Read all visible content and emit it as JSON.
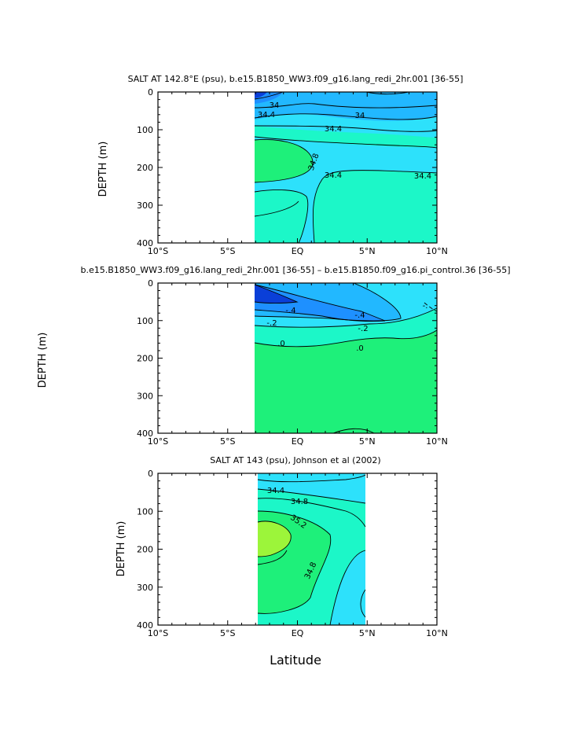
{
  "chart_data": [
    {
      "type": "contour",
      "title": "SALT AT 142.8°E (psu), b.e15.B1850_WW3.f09_g16.lang_redi_2hr.001 [36-55]",
      "ylabel": "DEPTH (m)",
      "xlabel": "",
      "xlim": [
        -10,
        10
      ],
      "ylim": [
        400,
        0
      ],
      "x_ticks": [
        "10°S",
        "5°S",
        "EQ",
        "5°N",
        "10°N"
      ],
      "y_ticks": [
        "0",
        "100",
        "200",
        "300",
        "400"
      ],
      "data_extent_x": [
        -3,
        10
      ],
      "contour_labels": [
        "34",
        "34.4",
        "34",
        "34.4",
        "34.8",
        "34.4",
        "34.4"
      ],
      "colors": {
        "deep": "#0a3fd8",
        "mid": "#1e90ff",
        "light": "#22b8ff",
        "cyan": "#2de1fb",
        "aqua": "#1cf7c8",
        "green": "#1ef07a"
      }
    },
    {
      "type": "contour",
      "title": "b.e15.B1850_WW3.f09_g16.lang_redi_2hr.001 [36-55] – b.e15.B1850.f09_g16.pi_control.36 [36-55]",
      "ylabel": "DEPTH (m)",
      "xlabel": "",
      "xlim": [
        -10,
        10
      ],
      "ylim": [
        400,
        0
      ],
      "x_ticks": [
        "10°S",
        "5°S",
        "EQ",
        "5°N",
        "10°N"
      ],
      "y_ticks": [
        "0",
        "100",
        "200",
        "300",
        "400"
      ],
      "data_extent_x": [
        -3,
        10
      ],
      "contour_labels": [
        "-.4",
        "-.4",
        "-.2",
        "-.2",
        ".0",
        ".0",
        "-."
      ],
      "colors": {
        "deep": "#0a3fd8",
        "mid": "#1e90ff",
        "light": "#22b8ff",
        "cyan": "#2de1fb",
        "aqua": "#1cf7c8",
        "green": "#1ef07a"
      }
    },
    {
      "type": "contour",
      "title": "SALT AT 143 (psu), Johnson et al (2002)",
      "ylabel": "DEPTH (m)",
      "xlabel": "Latitude",
      "xlim": [
        -10,
        10
      ],
      "ylim": [
        400,
        0
      ],
      "x_ticks": [
        "10°S",
        "5°S",
        "EQ",
        "5°N",
        "10°N"
      ],
      "y_ticks": [
        "0",
        "100",
        "200",
        "300",
        "400"
      ],
      "data_extent_x": [
        -2.7,
        5
      ],
      "contour_labels": [
        "34.4",
        "34.8",
        "35.2",
        "34.8"
      ],
      "colors": {
        "deep": "#0a3fd8",
        "mid": "#1e90ff",
        "light": "#22b8ff",
        "cyan": "#2de1fb",
        "aqua": "#1cf7c8",
        "green": "#1ef07a",
        "lime": "#9cf53a"
      }
    }
  ]
}
